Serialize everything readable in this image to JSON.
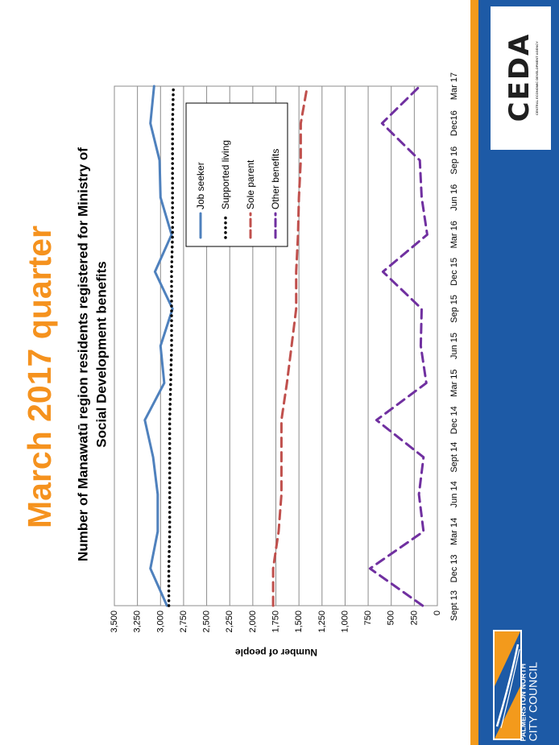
{
  "slide_title": "March 2017 quarter",
  "brand": {
    "ceda_logo": "CEDA",
    "ceda_tagline": "CENTRAL ECONOMIC DEVELOPMENT AGENCY",
    "council_name_line1": "PALMERSTON NORTH",
    "council_name_line2": "CITY COUNCIL",
    "council_shield": "palmerston-north-shield",
    "colors": {
      "orange": "#F39A1C",
      "blue": "#1D5AA6",
      "title_orange": "#F5921E"
    }
  },
  "chart_data": {
    "type": "line",
    "title": "Number of Manawatū region residents registered for Ministry of Social Development benefits",
    "xlabel": "",
    "ylabel": "Number of people",
    "ylim": [
      0,
      3500
    ],
    "yticks": [
      0,
      250,
      500,
      750,
      1000,
      1250,
      1500,
      1750,
      2000,
      2250,
      2500,
      2750,
      3000,
      3250,
      3500
    ],
    "ytick_labels": [
      "0",
      "250",
      "500",
      "750",
      "1,000",
      "1,250",
      "1,500",
      "1,750",
      "2,000",
      "2,250",
      "2,500",
      "2,750",
      "3,000",
      "3,250",
      "3,500"
    ],
    "categories": [
      "Sept 13",
      "Dec 13",
      "Mar 14",
      "Jun 14",
      "Sept 14",
      "Dec 14",
      "Mar 15",
      "Jun 15",
      "Sep 15",
      "Dec 15",
      "Mar 16",
      "Jun 16",
      "Sep 16",
      "Dec16",
      "Mar 17"
    ],
    "grid": true,
    "legend_position": "top-right",
    "series": [
      {
        "name": "Job seeker",
        "color": "#4F81BD",
        "style": "solid",
        "values": [
          2930,
          3110,
          3030,
          3030,
          3080,
          3170,
          2960,
          3000,
          2870,
          3060,
          2880,
          3000,
          3010,
          3110,
          3070
        ]
      },
      {
        "name": "Supported living",
        "color": "#000000",
        "style": "dotted",
        "values": [
          2910,
          2910,
          2900,
          2900,
          2900,
          2900,
          2890,
          2880,
          2880,
          2880,
          2870,
          2870,
          2870,
          2870,
          2860
        ]
      },
      {
        "name": "Sole parent",
        "color": "#C0504D",
        "style": "dashed",
        "values": [
          1780,
          1780,
          1720,
          1690,
          1690,
          1690,
          1630,
          1580,
          1530,
          1530,
          1510,
          1500,
          1480,
          1480,
          1410
        ]
      },
      {
        "name": "Other benefits",
        "color": "#7030A0",
        "style": "dashed",
        "values": [
          160,
          730,
          150,
          200,
          150,
          660,
          120,
          180,
          170,
          590,
          110,
          170,
          190,
          600,
          190
        ]
      }
    ]
  }
}
